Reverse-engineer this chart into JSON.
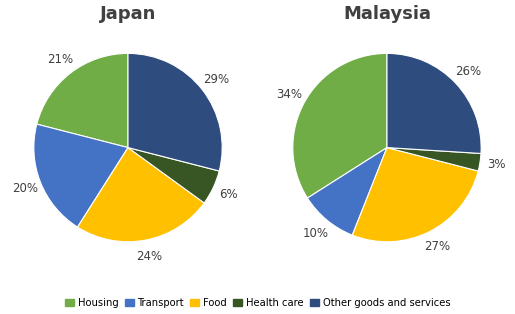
{
  "japan": {
    "title": "Japan",
    "values": [
      21,
      20,
      24,
      6,
      29
    ],
    "labels": [
      "21%",
      "20%",
      "24%",
      "6%",
      "29%"
    ],
    "startangle": 90
  },
  "malaysia": {
    "title": "Malaysia",
    "values": [
      34,
      10,
      27,
      3,
      26
    ],
    "labels": [
      "34%",
      "10%",
      "27%",
      "3%",
      "26%"
    ],
    "startangle": 90
  },
  "colors": [
    "#70ad47",
    "#4472c4",
    "#ffc000",
    "#375623",
    "#2e4c7e"
  ],
  "legend_labels": [
    "Housing",
    "Transport",
    "Food",
    "Health care",
    "Other goods and services"
  ],
  "label_fontsize": 8.5,
  "title_fontsize": 13,
  "background_color": "#ffffff"
}
